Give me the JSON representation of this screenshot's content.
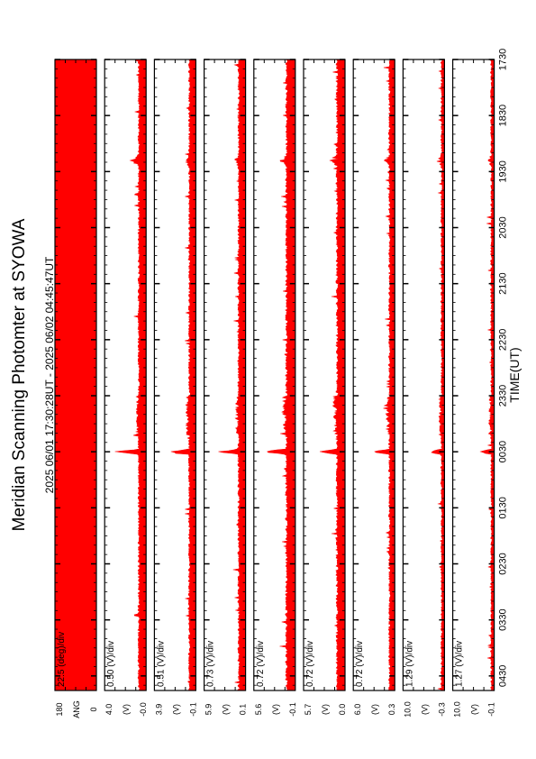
{
  "page": {
    "title": "Meridian Scanning Photomter at SYOWA",
    "period": "2025 06/01 17:30:28UT - 2025 06/02 04:45:47UT",
    "xlabel": "TIME(UT)"
  },
  "colors": {
    "trace": "#ff0000",
    "frame": "#000000",
    "background": "#ffffff"
  },
  "chart_data": {
    "type": "line",
    "orientation": "rotated-90",
    "x_axis": {
      "label": "TIME(UT)",
      "tick_labels": [
        "1730",
        "1830",
        "1930",
        "2030",
        "2130",
        "2230",
        "2330",
        "0030",
        "0130",
        "0230",
        "0330",
        "0430"
      ],
      "range_hours_ut": [
        17.5,
        28.76
      ]
    },
    "panels": [
      {
        "scale": "22.5 (deg)/div",
        "y_top": "180",
        "y_mid": "ANG",
        "y_bot": "0",
        "filled": true
      },
      {
        "scale": "0.50 (V)/div",
        "y_top": "4.0",
        "y_mid": "(V)",
        "y_bot": "-0.0",
        "baseline": 0.15,
        "noise": 0.05,
        "spike": 0.65
      },
      {
        "scale": "0.51 (V)/div",
        "y_top": "3.9",
        "y_mid": "(V)",
        "y_bot": "-0.1",
        "baseline": 0.13,
        "noise": 0.05,
        "spike": 0.6
      },
      {
        "scale": "0.73 (V)/div",
        "y_top": "5.9",
        "y_mid": "(V)",
        "y_bot": "0.1",
        "baseline": 0.14,
        "noise": 0.05,
        "spike": 0.55
      },
      {
        "scale": "0.72 (V)/div",
        "y_top": "5.6",
        "y_mid": "(V)",
        "y_bot": "-0.1",
        "baseline": 0.18,
        "noise": 0.06,
        "spike": 0.65
      },
      {
        "scale": "0.72 (V)/div",
        "y_top": "5.7",
        "y_mid": "(V)",
        "y_bot": "0.0",
        "baseline": 0.16,
        "noise": 0.06,
        "spike": 0.6
      },
      {
        "scale": "0.72 (V)/div",
        "y_top": "6.0",
        "y_mid": "(V)",
        "y_bot": "0.3",
        "baseline": 0.1,
        "noise": 0.05,
        "spike": 0.45
      },
      {
        "scale": "1.29 (V)/div",
        "y_top": "10.0",
        "y_mid": "(V)",
        "y_bot": "-0.3",
        "baseline": 0.05,
        "noise": 0.04,
        "spike": 0.4
      },
      {
        "scale": "1.27 (V)/div",
        "y_top": "10.0",
        "y_mid": "(V)",
        "y_bot": "-0.1",
        "baseline": 0.05,
        "noise": 0.04,
        "spike": 0.35
      }
    ]
  }
}
